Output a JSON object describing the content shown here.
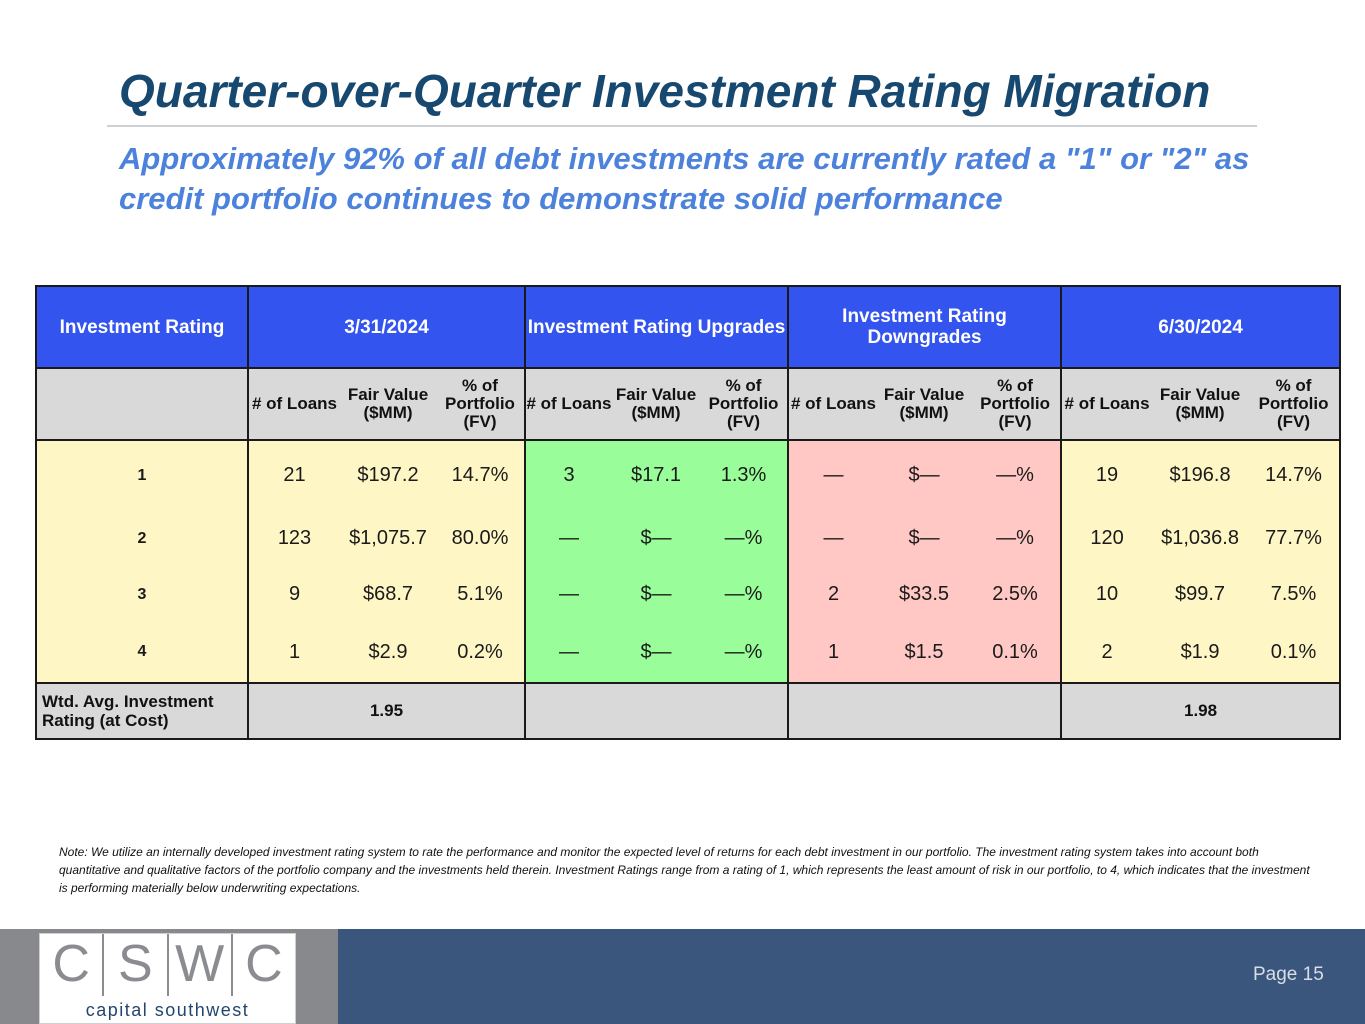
{
  "title": "Quarter-over-Quarter Investment Rating Migration",
  "subtitle": "Approximately 92% of all debt investments are currently rated a \"1\" or \"2\" as credit portfolio continues to demonstrate solid performance",
  "table": {
    "group_headers": [
      "Investment Rating",
      "3/31/2024",
      "Investment Rating Upgrades",
      "Investment Rating Downgrades",
      "6/30/2024"
    ],
    "sub_headers": [
      "# of Loans",
      "Fair Value ($MM)",
      "% of Portfolio (FV)"
    ],
    "rows": [
      {
        "rating": "1",
        "q1": [
          "21",
          "$197.2",
          "14.7%"
        ],
        "up": [
          "3",
          "$17.1",
          "1.3%"
        ],
        "down": [
          "—",
          "$—",
          "—%"
        ],
        "q2": [
          "19",
          "$196.8",
          "14.7%"
        ]
      },
      {
        "rating": "2",
        "q1": [
          "123",
          "$1,075.7",
          "80.0%"
        ],
        "up": [
          "—",
          "$—",
          "—%"
        ],
        "down": [
          "—",
          "$—",
          "—%"
        ],
        "q2": [
          "120",
          "$1,036.8",
          "77.7%"
        ]
      },
      {
        "rating": "3",
        "q1": [
          "9",
          "$68.7",
          "5.1%"
        ],
        "up": [
          "—",
          "$—",
          "—%"
        ],
        "down": [
          "2",
          "$33.5",
          "2.5%"
        ],
        "q2": [
          "10",
          "$99.7",
          "7.5%"
        ]
      },
      {
        "rating": "4",
        "q1": [
          "1",
          "$2.9",
          "0.2%"
        ],
        "up": [
          "—",
          "$—",
          "—%"
        ],
        "down": [
          "1",
          "$1.5",
          "0.1%"
        ],
        "q2": [
          "2",
          "$1.9",
          "0.1%"
        ]
      }
    ],
    "footer_label": "Wtd. Avg. Investment Rating (at Cost)",
    "footer_q1": "1.95",
    "footer_q2": "1.98"
  },
  "note": "Note: We utilize an internally developed investment rating system to rate the performance and monitor the expected level of returns for each debt investment in our portfolio. The investment rating system takes into account both quantitative and qualitative factors of the portfolio company and the investments held therein. Investment Ratings range from a rating of 1, which represents the least amount of risk in our portfolio, to 4, which indicates that the investment is performing materially below underwriting expectations.",
  "logo": {
    "letters": [
      "C",
      "S",
      "W",
      "C"
    ],
    "tagline": "capital southwest"
  },
  "page_label": "Page 15",
  "colors": {
    "title": "#17486f",
    "subtitle": "#4c82dc",
    "header_blue": "#3354ee",
    "rating_yellow": "#fff6c6",
    "upgrade_green": "#99fe99",
    "downgrade_red": "#ffc8c5",
    "footer_navy": "#3a567c"
  }
}
